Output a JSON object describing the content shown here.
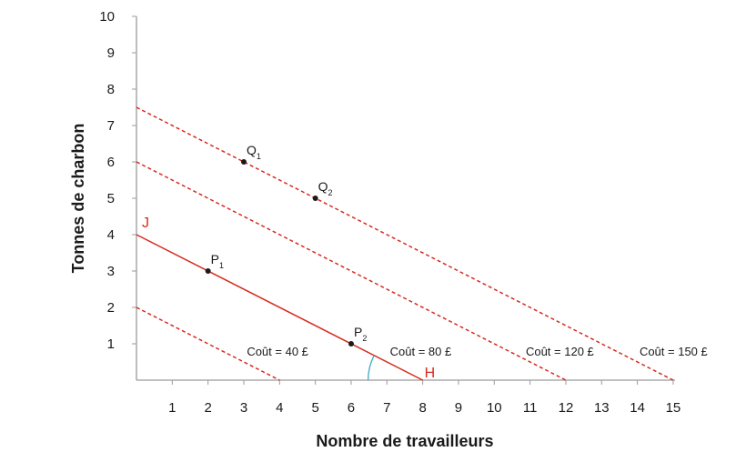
{
  "chart_data": {
    "type": "line",
    "xlabel": "Nombre de travailleurs",
    "ylabel": "Tonnes de charbon",
    "xlim": [
      0,
      15
    ],
    "ylim": [
      0,
      10
    ],
    "x_ticks": [
      1,
      2,
      3,
      4,
      5,
      6,
      7,
      8,
      9,
      10,
      11,
      12,
      13,
      14,
      15
    ],
    "y_ticks": [
      1,
      2,
      3,
      4,
      5,
      6,
      7,
      8,
      9,
      10
    ],
    "grid": false,
    "colors": {
      "line": "#d62b1f",
      "axis": "#9a9a9a",
      "point": "#1a1a1a",
      "arc": "#3fa9c9"
    },
    "series": [
      {
        "style": "solid",
        "label_start": "J",
        "label_end": "H",
        "label": "Coût = 80 £",
        "points": [
          [
            0,
            4
          ],
          [
            8,
            0
          ]
        ]
      },
      {
        "style": "dashed",
        "label": "Coût = 40 £",
        "points": [
          [
            0,
            2
          ],
          [
            4,
            0
          ]
        ]
      },
      {
        "style": "dashed",
        "label": "Coût = 120 £",
        "points": [
          [
            0,
            6
          ],
          [
            12,
            0
          ]
        ]
      },
      {
        "style": "dashed",
        "label": "Coût = 150 £",
        "points": [
          [
            0,
            7.5
          ],
          [
            15,
            0
          ]
        ]
      }
    ],
    "points": [
      {
        "name": "P",
        "sub": "1",
        "x": 2,
        "y": 3
      },
      {
        "name": "P",
        "sub": "2",
        "x": 6,
        "y": 1
      },
      {
        "name": "Q",
        "sub": "1",
        "x": 3,
        "y": 6
      },
      {
        "name": "Q",
        "sub": "2",
        "x": 5,
        "y": 5
      }
    ]
  }
}
